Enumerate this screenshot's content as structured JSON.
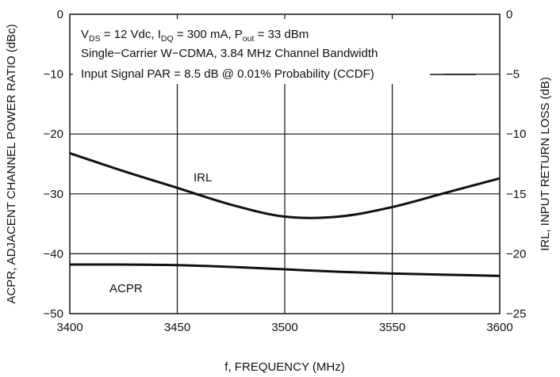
{
  "chart_data": {
    "type": "line",
    "grid": true,
    "x_axis": {
      "label": "f, FREQUENCY (MHz)",
      "range": [
        3400,
        3600
      ],
      "ticks": [
        3400,
        3450,
        3500,
        3550,
        3600
      ]
    },
    "y_axis_left": {
      "label": "ACPR, ADJACENT CHANNEL POWER RATIO (dBc)",
      "range": [
        -50,
        0
      ],
      "ticks": [
        "0",
        "−10",
        "−20",
        "−30",
        "−40",
        "−50"
      ],
      "tick_values": [
        0,
        -10,
        -20,
        -30,
        -40,
        -50
      ]
    },
    "y_axis_right": {
      "label": "IRL, INPUT RETURN LOSS (dB)",
      "range": [
        -25,
        0
      ],
      "ticks": [
        "0",
        "−5",
        "−10",
        "−15",
        "−20",
        "−25"
      ],
      "tick_values": [
        0,
        -5,
        -10,
        -15,
        -20,
        -25
      ]
    },
    "annotation_lines": [
      {
        "pre": "V",
        "sub": "DS",
        "post": " = 12 Vdc, I",
        "sub2": "DQ",
        "post2": " = 300 mA, P",
        "sub3": "out",
        "post3": " = 33 dBm"
      },
      {
        "text": "Single−Carrier W−CDMA, 3.84 MHz Channel Bandwidth"
      },
      {
        "text": "Input Signal PAR = 8.5 dB @ 0.01% Probability (CCDF)"
      }
    ],
    "series": [
      {
        "name": "IRL",
        "axis": "right",
        "x": [
          3400,
          3425,
          3450,
          3475,
          3500,
          3525,
          3550,
          3575,
          3600
        ],
        "values": [
          -11.6,
          -13.1,
          -14.5,
          -15.9,
          -16.9,
          -16.9,
          -16.1,
          -14.9,
          -13.7
        ]
      },
      {
        "name": "ACPR",
        "axis": "left",
        "x": [
          3400,
          3425,
          3450,
          3475,
          3500,
          3525,
          3550,
          3575,
          3600
        ],
        "values": [
          -41.8,
          -41.8,
          -41.9,
          -42.2,
          -42.6,
          -43.0,
          -43.3,
          -43.5,
          -43.7
        ]
      }
    ]
  }
}
